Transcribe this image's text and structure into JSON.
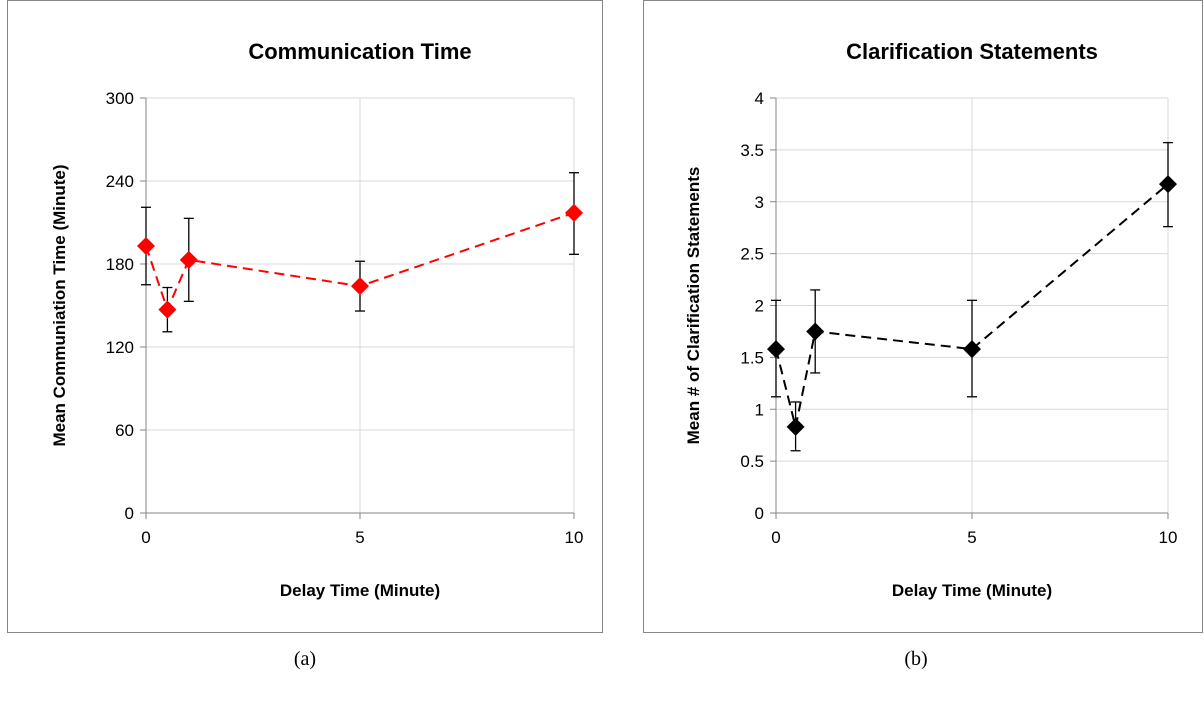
{
  "captions": {
    "a": "(a)",
    "b": "(b)"
  },
  "chart_data": [
    {
      "type": "line",
      "title": "Communication Time",
      "xlabel": "Delay Time (Minute)",
      "ylabel": "Mean Communiation Time (Minute)",
      "xlim": [
        0,
        10
      ],
      "ylim": [
        0,
        300
      ],
      "x_ticks": [
        0,
        5,
        10
      ],
      "y_ticks": [
        0,
        60,
        120,
        180,
        240,
        300
      ],
      "grid": true,
      "color": "#ff0000",
      "marker": "diamond",
      "line_style": "dashed",
      "series": [
        {
          "x": [
            0,
            0.5,
            1,
            5,
            10
          ],
          "values": [
            193,
            147,
            183,
            164,
            217
          ],
          "err_low": [
            165,
            131,
            153,
            146,
            187
          ],
          "err_high": [
            221,
            163,
            213,
            182,
            246
          ]
        }
      ]
    },
    {
      "type": "line",
      "title": "Clarification Statements",
      "xlabel": "Delay Time (Minute)",
      "ylabel": "Mean # of Clarification Statements",
      "xlim": [
        0,
        10
      ],
      "ylim": [
        0,
        4
      ],
      "x_ticks": [
        0,
        5,
        10
      ],
      "y_ticks": [
        0,
        0.5,
        1,
        1.5,
        2,
        2.5,
        3,
        3.5,
        4
      ],
      "grid": true,
      "color": "#000000",
      "marker": "diamond",
      "line_style": "dashed",
      "series": [
        {
          "x": [
            0,
            0.5,
            1,
            5,
            10
          ],
          "values": [
            1.58,
            0.83,
            1.75,
            1.58,
            3.17
          ],
          "err_low": [
            1.12,
            0.6,
            1.35,
            1.12,
            2.76
          ],
          "err_high": [
            2.05,
            1.07,
            2.15,
            2.05,
            3.57
          ]
        }
      ]
    }
  ]
}
